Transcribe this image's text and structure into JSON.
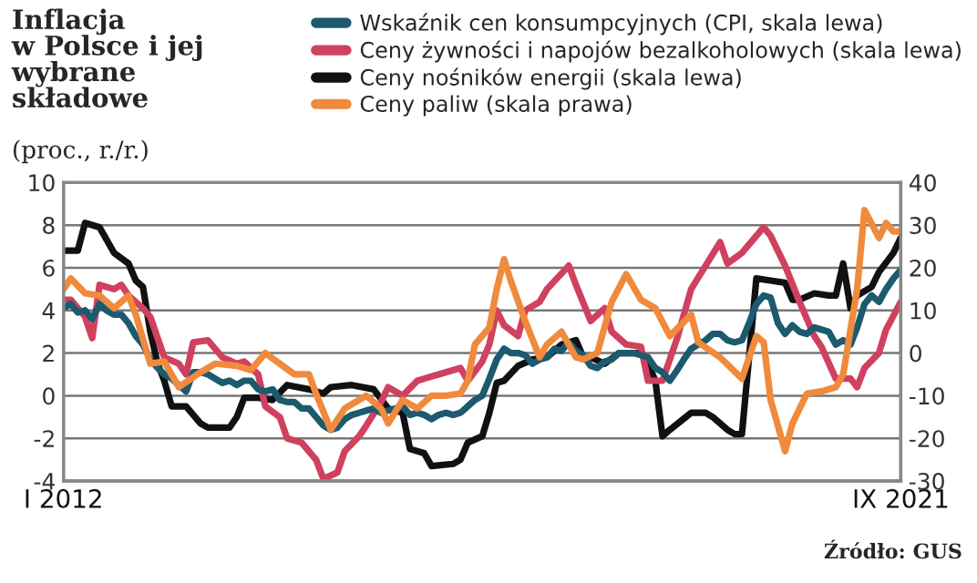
{
  "chart_data": {
    "type": "line",
    "title": "Inflacja\nw Polsce i jej\nwybrane\nskładowe",
    "subtitle": "(proc., r./r.)",
    "annotations": [
      "Źródło: GUS"
    ],
    "xlim": [
      "2012-01",
      "2021-09"
    ],
    "xticks": [
      {
        "value": "2012-01",
        "label": "I 2012"
      },
      {
        "value": "2021-09",
        "label": "IX 2021"
      }
    ],
    "ylim": [
      -4,
      10
    ],
    "yticks": [
      -4,
      -2,
      0,
      2,
      4,
      6,
      8,
      10
    ],
    "y2lim": [
      -30,
      40
    ],
    "y2ticks": [
      -30,
      -20,
      -10,
      0,
      10,
      20,
      30,
      40
    ],
    "grid": "y",
    "legend": "top right",
    "line_style": "solid",
    "series": [
      {
        "name": "Wskaźnik cen konsumpcyjnych (CPI, skala lewa)",
        "color": "#1c5a6e",
        "x": [
          "2012-01",
          "2012-02",
          "2012-03",
          "2012-04",
          "2012-05",
          "2012-06",
          "2012-07",
          "2012-08",
          "2012-09",
          "2012-10",
          "2012-11",
          "2012-12",
          "2013-01",
          "2013-02",
          "2013-03",
          "2013-04",
          "2013-05",
          "2013-06",
          "2013-07",
          "2013-08",
          "2013-09",
          "2013-10",
          "2013-11",
          "2013-12",
          "2014-01",
          "2014-02",
          "2014-03",
          "2014-04",
          "2014-05",
          "2014-06",
          "2014-07",
          "2014-08",
          "2014-09",
          "2014-10",
          "2014-11",
          "2014-12",
          "2015-01",
          "2015-02",
          "2015-03",
          "2015-04",
          "2015-05",
          "2015-06",
          "2015-07",
          "2015-08",
          "2015-09",
          "2015-10",
          "2015-11",
          "2015-12",
          "2016-01",
          "2016-02",
          "2016-03",
          "2016-04",
          "2016-05",
          "2016-06",
          "2016-07",
          "2016-08",
          "2016-09",
          "2016-10",
          "2016-11",
          "2016-12",
          "2017-01",
          "2017-02",
          "2017-03",
          "2017-04",
          "2017-05",
          "2017-06",
          "2017-07",
          "2017-08",
          "2017-09",
          "2017-10",
          "2017-11",
          "2017-12",
          "2018-01",
          "2018-02",
          "2018-03",
          "2018-04",
          "2018-05",
          "2018-06",
          "2018-07",
          "2018-08",
          "2018-09",
          "2018-10",
          "2018-11",
          "2018-12",
          "2019-01",
          "2019-02",
          "2019-03",
          "2019-04",
          "2019-05",
          "2019-06",
          "2019-07",
          "2019-08",
          "2019-09",
          "2019-10",
          "2019-11",
          "2019-12",
          "2020-01",
          "2020-02",
          "2020-03",
          "2020-04",
          "2020-05",
          "2020-06",
          "2020-07",
          "2020-08",
          "2020-09",
          "2020-10",
          "2020-11",
          "2020-12",
          "2021-01",
          "2021-02",
          "2021-03",
          "2021-04",
          "2021-05",
          "2021-06",
          "2021-07",
          "2021-08",
          "2021-09"
        ],
        "values": [
          4.1,
          4.3,
          3.9,
          4.0,
          3.6,
          4.3,
          4.0,
          3.8,
          3.8,
          3.4,
          2.8,
          2.4,
          1.7,
          1.3,
          1.0,
          0.8,
          0.5,
          0.2,
          1.1,
          1.1,
          1.0,
          0.8,
          0.6,
          0.7,
          0.5,
          0.7,
          0.7,
          0.3,
          0.2,
          0.3,
          -0.2,
          -0.3,
          -0.3,
          -0.6,
          -0.6,
          -1.0,
          -1.4,
          -1.6,
          -1.5,
          -1.1,
          -0.9,
          -0.8,
          -0.7,
          -0.6,
          -0.8,
          -0.7,
          -0.6,
          -0.5,
          -0.9,
          -0.8,
          -0.9,
          -1.1,
          -0.9,
          -0.8,
          -0.9,
          -0.8,
          -0.5,
          -0.2,
          0.0,
          0.8,
          1.7,
          2.2,
          2.0,
          2.0,
          1.9,
          1.5,
          1.7,
          1.8,
          2.2,
          2.1,
          2.5,
          2.1,
          1.9,
          1.4,
          1.3,
          1.6,
          1.7,
          2.0,
          2.0,
          2.0,
          1.9,
          1.8,
          1.3,
          1.1,
          0.7,
          1.2,
          1.7,
          2.2,
          2.4,
          2.6,
          2.9,
          2.9,
          2.6,
          2.5,
          2.6,
          3.4,
          4.3,
          4.7,
          4.6,
          3.4,
          2.9,
          3.3,
          3.0,
          2.9,
          3.2,
          3.1,
          3.0,
          2.4,
          2.6,
          2.4,
          3.2,
          4.3,
          4.7,
          4.4,
          5.0,
          5.5,
          5.9
        ]
      },
      {
        "name": "Ceny żywności i napojów bezalkoholowych (skala lewa)",
        "color": "#d0415f",
        "x": [
          "2012-01",
          "2012-02",
          "2012-04",
          "2012-05",
          "2012-06",
          "2012-08",
          "2012-09",
          "2012-10",
          "2012-12",
          "2013-01",
          "2013-03",
          "2013-05",
          "2013-06",
          "2013-07",
          "2013-09",
          "2013-11",
          "2014-01",
          "2014-02",
          "2014-04",
          "2014-05",
          "2014-07",
          "2014-08",
          "2014-10",
          "2014-12",
          "2015-01",
          "2015-03",
          "2015-04",
          "2015-06",
          "2015-07",
          "2015-09",
          "2015-10",
          "2015-12",
          "2016-02",
          "2016-03",
          "2016-05",
          "2016-08",
          "2016-09",
          "2016-11",
          "2016-12",
          "2017-01",
          "2017-02",
          "2017-04",
          "2017-05",
          "2017-07",
          "2017-08",
          "2017-11",
          "2017-12",
          "2018-02",
          "2018-04",
          "2018-05",
          "2018-07",
          "2018-09",
          "2018-10",
          "2018-12",
          "2019-02",
          "2019-04",
          "2019-06",
          "2019-08",
          "2019-09",
          "2019-11",
          "2020-01",
          "2020-02",
          "2020-03",
          "2020-05",
          "2020-07",
          "2020-09",
          "2020-10",
          "2020-12",
          "2021-02",
          "2021-03",
          "2021-04",
          "2021-06",
          "2021-07",
          "2021-09"
        ],
        "values": [
          4.5,
          4.5,
          3.7,
          2.7,
          5.2,
          5.0,
          5.2,
          4.7,
          4.1,
          3.7,
          1.8,
          1.5,
          1.0,
          2.5,
          2.6,
          1.8,
          1.5,
          1.6,
          1.0,
          -0.5,
          -1.0,
          -2.0,
          -2.2,
          -3.0,
          -3.9,
          -3.6,
          -2.6,
          -1.9,
          -1.4,
          -0.3,
          0.4,
          0.0,
          0.7,
          0.8,
          1.0,
          1.3,
          0.7,
          1.6,
          2.4,
          4.0,
          3.3,
          2.8,
          4.0,
          4.4,
          5.0,
          6.1,
          5.2,
          3.5,
          4.1,
          3.0,
          2.4,
          2.3,
          0.7,
          0.7,
          2.7,
          5.0,
          6.1,
          7.2,
          6.2,
          6.7,
          7.5,
          7.9,
          7.5,
          6.1,
          4.4,
          2.8,
          2.3,
          0.8,
          0.8,
          0.4,
          1.3,
          2.0,
          3.1,
          4.4
        ]
      },
      {
        "name": "Ceny nośników energii (skala lewa)",
        "color": "#111111",
        "x": [
          "2012-01",
          "2012-03",
          "2012-04",
          "2012-06",
          "2012-08",
          "2012-10",
          "2012-11",
          "2012-12",
          "2013-01",
          "2013-02",
          "2013-03",
          "2013-04",
          "2013-06",
          "2013-08",
          "2013-09",
          "2013-12",
          "2014-01",
          "2014-02",
          "2014-04",
          "2014-06",
          "2014-08",
          "2014-11",
          "2015-01",
          "2015-02",
          "2015-05",
          "2015-08",
          "2015-10",
          "2015-12",
          "2016-01",
          "2016-03",
          "2016-04",
          "2016-07",
          "2016-08",
          "2016-09",
          "2016-11",
          "2016-12",
          "2017-01",
          "2017-02",
          "2017-04",
          "2017-06",
          "2017-08",
          "2017-10",
          "2017-12",
          "2018-01",
          "2018-02",
          "2018-04",
          "2018-06",
          "2018-09",
          "2018-10",
          "2018-11",
          "2018-12",
          "2019-01",
          "2019-04",
          "2019-06",
          "2019-07",
          "2019-09",
          "2019-10",
          "2019-11",
          "2020-01",
          "2020-03",
          "2020-05",
          "2020-06",
          "2020-07",
          "2020-09",
          "2020-11",
          "2020-12",
          "2021-01",
          "2021-02",
          "2021-03",
          "2021-05",
          "2021-06",
          "2021-08",
          "2021-09"
        ],
        "values": [
          6.8,
          6.8,
          8.1,
          7.9,
          6.7,
          6.2,
          5.4,
          5.1,
          3.0,
          1.5,
          0.7,
          -0.5,
          -0.5,
          -1.3,
          -1.5,
          -1.5,
          -1.0,
          -0.1,
          -0.1,
          -0.2,
          0.5,
          0.3,
          0.1,
          0.4,
          0.5,
          0.3,
          -0.6,
          -0.8,
          -2.5,
          -2.7,
          -3.3,
          -3.2,
          -3.0,
          -2.2,
          -1.9,
          -0.8,
          0.6,
          0.7,
          1.4,
          1.7,
          1.8,
          2.4,
          2.6,
          1.8,
          1.8,
          1.5,
          2.0,
          2.0,
          1.5,
          0.7,
          -1.9,
          -1.6,
          -0.8,
          -0.8,
          -1.0,
          -1.6,
          -1.8,
          -1.8,
          5.5,
          5.4,
          5.3,
          4.5,
          4.5,
          4.8,
          4.7,
          4.7,
          6.2,
          4.1,
          4.7,
          5.1,
          5.8,
          6.7,
          7.4
        ]
      },
      {
        "name": "Ceny paliw (skala prawa)",
        "color": "#f08a3c",
        "axis": "y2",
        "x": [
          "2012-01",
          "2012-02",
          "2012-04",
          "2012-06",
          "2012-08",
          "2012-10",
          "2012-11",
          "2013-01",
          "2013-03",
          "2013-05",
          "2013-08",
          "2013-10",
          "2014-01",
          "2014-03",
          "2014-05",
          "2014-07",
          "2014-09",
          "2014-11",
          "2014-12",
          "2015-02",
          "2015-04",
          "2015-07",
          "2015-09",
          "2015-10",
          "2015-12",
          "2016-02",
          "2016-04",
          "2016-06",
          "2016-08",
          "2016-09",
          "2016-10",
          "2016-12",
          "2017-01",
          "2017-02",
          "2017-03",
          "2017-05",
          "2017-07",
          "2017-08",
          "2017-10",
          "2017-12",
          "2018-01",
          "2018-03",
          "2018-05",
          "2018-07",
          "2018-09",
          "2018-11",
          "2019-01",
          "2019-04",
          "2019-05",
          "2019-08",
          "2019-11",
          "2020-01",
          "2020-02",
          "2020-03",
          "2020-05",
          "2020-06",
          "2020-08",
          "2020-10",
          "2020-12",
          "2021-01",
          "2021-03",
          "2021-04",
          "2021-06",
          "2021-07",
          "2021-08",
          "2021-09"
        ],
        "values": [
          15,
          17.5,
          14,
          13.5,
          10.5,
          13.5,
          9,
          -2.5,
          -2,
          -8,
          -4.5,
          -2.5,
          -3,
          -4,
          0,
          -2.5,
          -5,
          -5,
          -9.5,
          -18,
          -13,
          -10,
          -13,
          -16.5,
          -11,
          -13,
          -10,
          -10,
          -9.5,
          -6.5,
          2,
          6,
          15,
          22,
          17,
          7.5,
          -1,
          2,
          5,
          -1,
          -1.5,
          0,
          12,
          18.5,
          12.5,
          10.5,
          4,
          9,
          2.5,
          -1,
          -6,
          4,
          2.5,
          -11,
          -23,
          -16.5,
          -9.5,
          -9,
          -8,
          -5,
          15,
          33.5,
          27,
          30.5,
          28.5,
          28.5
        ]
      }
    ]
  }
}
